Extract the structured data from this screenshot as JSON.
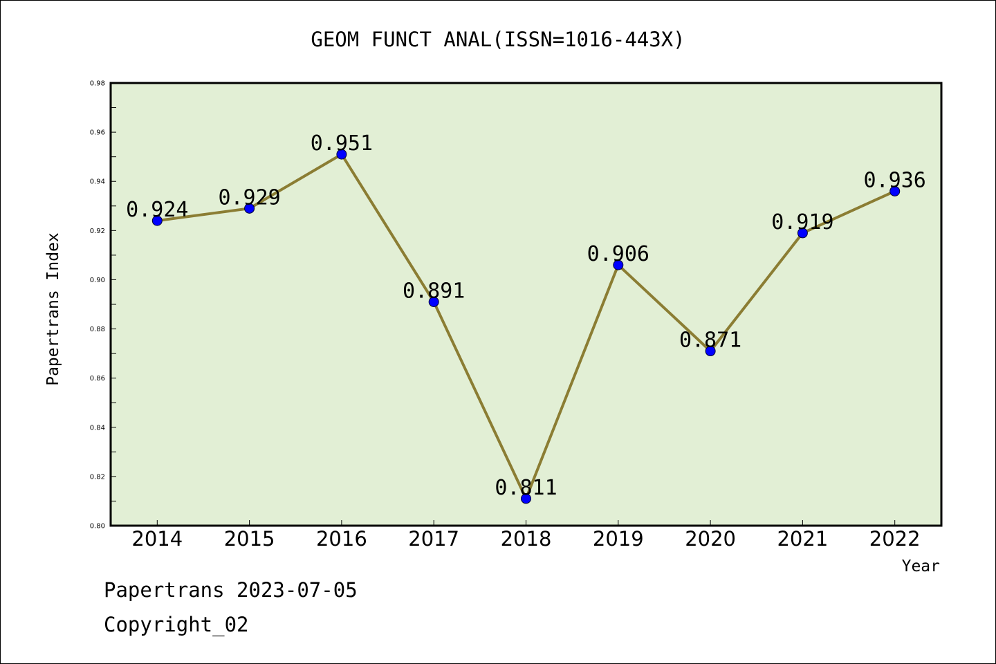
{
  "chart_data": {
    "type": "line",
    "title": "GEOM FUNCT ANAL(ISSN=1016-443X)",
    "xlabel": "Year",
    "ylabel": "Papertrans Index",
    "categories": [
      "2014",
      "2015",
      "2016",
      "2017",
      "2018",
      "2019",
      "2020",
      "2021",
      "2022"
    ],
    "series": [
      {
        "values": [
          0.924,
          0.929,
          0.951,
          0.891,
          0.811,
          0.906,
          0.871,
          0.919,
          0.936
        ]
      }
    ],
    "data_labels": [
      "0.924",
      "0.929",
      "0.951",
      "0.891",
      "0.811",
      "0.906",
      "0.871",
      "0.919",
      "0.936"
    ],
    "ylim": [
      0.8,
      0.98
    ],
    "yticks": [
      "0.80",
      "0.82",
      "0.84",
      "0.86",
      "0.88",
      "0.90",
      "0.92",
      "0.94",
      "0.96",
      "0.98"
    ],
    "grid": false,
    "colors": {
      "plot_background": "#e2efd5",
      "line": "#8b7d33",
      "marker": "#0000ff"
    }
  },
  "footer": {
    "line1": "Papertrans 2023-07-05",
    "line2": "Copyright_02"
  }
}
